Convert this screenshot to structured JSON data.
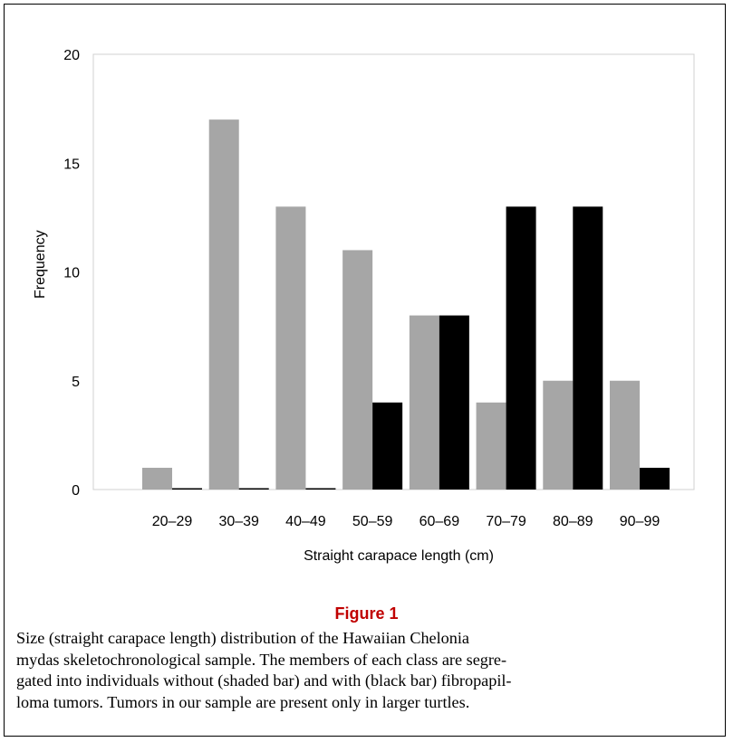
{
  "chart_data": {
    "type": "bar",
    "categories": [
      "20–29",
      "30–39",
      "40–49",
      "50–59",
      "60–69",
      "70–79",
      "80–89",
      "90–99"
    ],
    "series": [
      {
        "values": [
          1,
          17,
          13,
          11,
          8,
          4,
          5,
          5
        ],
        "color": "#a6a6a6"
      },
      {
        "values": [
          0,
          0,
          0,
          4,
          8,
          13,
          13,
          1
        ],
        "color": "#000000"
      }
    ],
    "ylabel": "Frequency",
    "xlabel": "Straight carapace length (cm)",
    "ylim": [
      0,
      20
    ],
    "yticks": [
      0,
      5,
      10,
      15,
      20
    ],
    "grid": false
  },
  "figure": {
    "title": "Figure 1",
    "caption_lines": [
      "Size (straight carapace length) distribution of the Hawaiian Chelonia",
      "mydas skeletochronological sample. The members of each class are segre-",
      "gated into individuals without (shaded bar) and with (black bar) fibropapil-",
      "loma tumors. Tumors in our sample are present only in larger turtles."
    ]
  }
}
